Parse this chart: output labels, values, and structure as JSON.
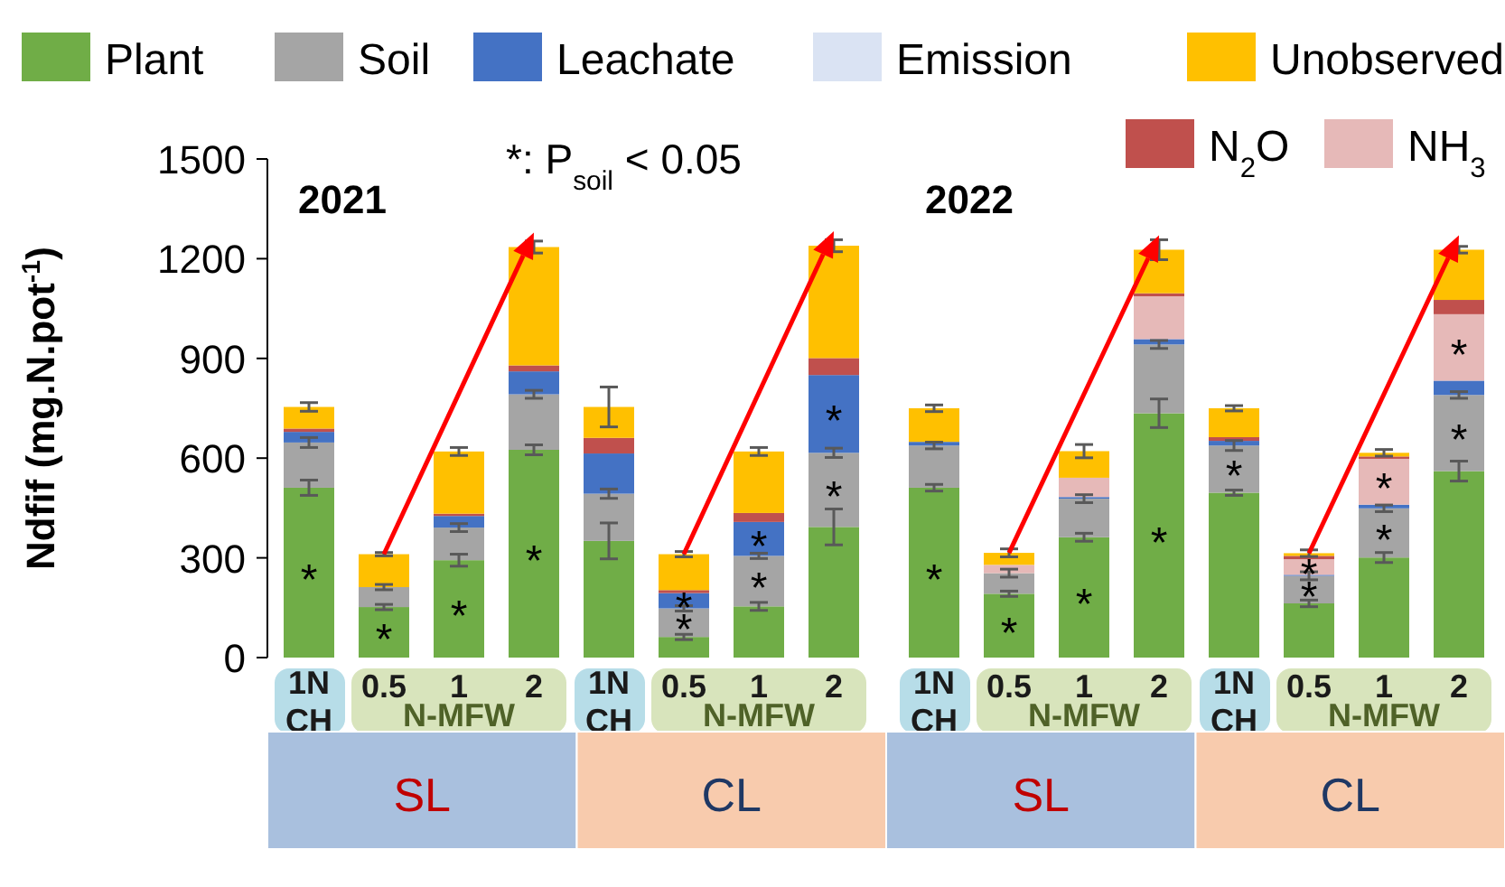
{
  "chart_data": {
    "type": "bar",
    "stacked": true,
    "legend": "top",
    "ylabel": "Ndfif (mg.N.pot$^{-1}$)",
    "ylim": [
      0,
      1500
    ],
    "yticks": [
      0,
      300,
      600,
      900,
      1200,
      1500
    ],
    "categories": [
      "1N CH",
      "0.5",
      "1",
      "2",
      "1N CH",
      "0.5",
      "1",
      "2",
      "1N CH",
      "0.5",
      "1",
      "2",
      "1N CH",
      "0.5",
      "1",
      "2"
    ],
    "annotations": [
      "2021",
      "2022",
      "*: P$_{soil}$ < 0.05",
      "N-MFW",
      "N-MFW",
      "N-MFW",
      "N-MFW",
      "SL",
      "CL",
      "SL",
      "CL"
    ],
    "series": [
      {
        "name": "Plant",
        "color": "#70ad47",
        "values": [
          511,
          152,
          293,
          625,
          351,
          62,
          154,
          393,
          511,
          192,
          362,
          735,
          496,
          163,
          301,
          561
        ],
        "errors": [
          23,
          8,
          18,
          15,
          54,
          8,
          12,
          54,
          10,
          8,
          12,
          43,
          8,
          10,
          15,
          30
        ],
        "value_labels": [
          "*",
          "*",
          "*",
          "*",
          null,
          null,
          null,
          null,
          "*",
          "*",
          "*",
          "*",
          null,
          null,
          null,
          null
        ]
      },
      {
        "name": "Soil",
        "color": "#a5a5a5",
        "values": [
          136,
          60,
          98,
          167,
          142,
          86,
          152,
          223,
          127,
          62,
          116,
          207,
          142,
          83,
          148,
          229
        ],
        "errors": [
          15,
          8,
          12,
          12,
          14,
          8,
          8,
          14,
          10,
          12,
          12,
          12,
          15,
          12,
          10,
          10
        ],
        "value_labels": [
          null,
          null,
          null,
          null,
          null,
          "*",
          "*",
          "*",
          null,
          null,
          null,
          null,
          "*",
          "*",
          "*",
          "*"
        ]
      },
      {
        "name": "Leachate",
        "color": "#4472c4",
        "values": [
          32,
          0,
          35,
          69,
          121,
          46,
          102,
          234,
          11,
          0,
          5,
          16,
          14,
          3,
          11,
          43
        ],
        "value_labels": [
          null,
          null,
          null,
          null,
          null,
          "*",
          "*",
          "*",
          null,
          null,
          null,
          null,
          null,
          null,
          null,
          null
        ]
      },
      {
        "name": "Emission",
        "color": "#dae3f3",
        "values": [
          null,
          null,
          null,
          null,
          null,
          null,
          null,
          null,
          null,
          null,
          null,
          null,
          null,
          null,
          null,
          null
        ]
      },
      {
        "name": "NH$_{3}$",
        "color": "#e6b9b8",
        "values": [
          0,
          0,
          0,
          0,
          0,
          0,
          0,
          0,
          0,
          25,
          58,
          129,
          0,
          47,
          138,
          200
        ],
        "value_labels": [
          null,
          null,
          null,
          null,
          null,
          null,
          null,
          null,
          null,
          null,
          null,
          null,
          null,
          "*",
          "*",
          "*"
        ]
      },
      {
        "name": "N$_{2}$O",
        "color": "#c0504d",
        "values": [
          10,
          0,
          7,
          18,
          47,
          9,
          27,
          51,
          0,
          0,
          0,
          9,
          11,
          10,
          7,
          43
        ]
      },
      {
        "name": "Unobserved",
        "color": "#ffc000",
        "values": [
          65,
          99,
          187,
          356,
          93,
          108,
          185,
          338,
          101,
          36,
          80,
          131,
          87,
          8,
          11,
          151
        ],
        "errors": [
          13,
          5,
          12,
          18,
          60,
          8,
          12,
          18,
          10,
          12,
          20,
          30,
          8,
          10,
          10,
          10
        ]
      }
    ]
  }
}
